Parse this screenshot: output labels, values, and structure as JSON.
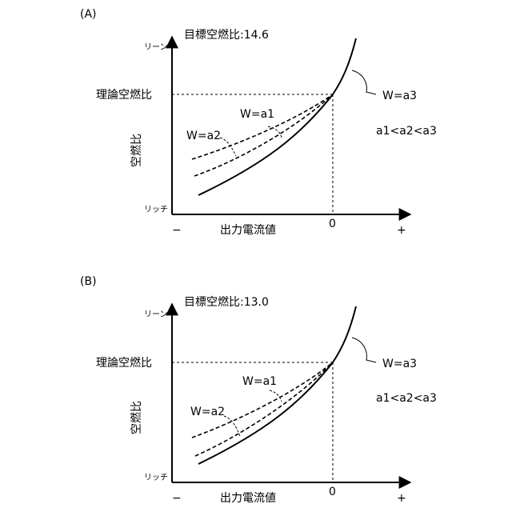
{
  "panels": [
    {
      "id": "A",
      "panel_label": "(A)",
      "target_label": "目標空燃比:14.6",
      "y_top_label": "リーン",
      "y_bottom_label": "リッチ",
      "stoich_label": "理論空燃比",
      "y_axis_label": "空燃比",
      "x_axis_label": "出力電流値",
      "x_minus": "−",
      "x_zero": "0",
      "x_plus": "+",
      "curve_labels": {
        "a1": "W=a1",
        "a2": "W=a2",
        "a3": "W=a3"
      },
      "relation": "a1<a2<a3"
    },
    {
      "id": "B",
      "panel_label": "(B)",
      "target_label": "目標空燃比:13.0",
      "y_top_label": "リーン",
      "y_bottom_label": "リッチ",
      "stoich_label": "理論空燃比",
      "y_axis_label": "空燃比",
      "x_axis_label": "出力電流値",
      "x_minus": "−",
      "x_zero": "0",
      "x_plus": "+",
      "curve_labels": {
        "a1": "W=a1",
        "a2": "W=a2",
        "a3": "W=a3"
      },
      "relation": "a1<a2<a3"
    }
  ]
}
